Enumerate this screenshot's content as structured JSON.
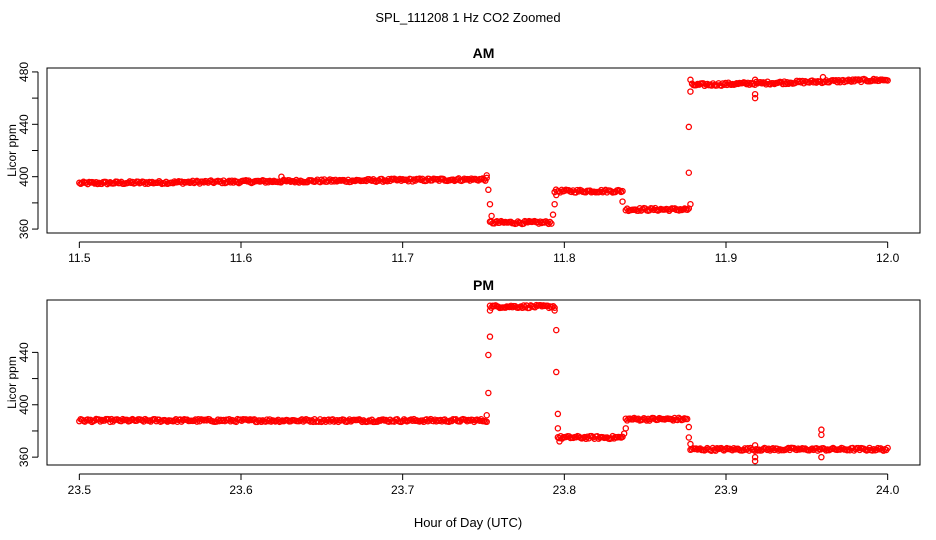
{
  "figure": {
    "suptitle": "SPL_111208  1 Hz CO2 Zoomed",
    "xlabel": "Hour of Day (UTC)"
  },
  "colors": {
    "points": "#ff0000",
    "axis": "#000000"
  },
  "chart_data": [
    {
      "type": "scatter",
      "title": "AM",
      "ylabel": "Licor ppm",
      "xlim": [
        11.48,
        12.02
      ],
      "ylim": [
        357,
        483
      ],
      "xticks": [
        11.5,
        11.6,
        11.7,
        11.8,
        11.9,
        12.0
      ],
      "xtick_labels": [
        "11.5",
        "11.6",
        "11.7",
        "11.8",
        "11.9",
        "12.0"
      ],
      "yticks": [
        360,
        380,
        400,
        420,
        440,
        460,
        480
      ],
      "ytick_labels": [
        "360",
        "",
        "400",
        "",
        "440",
        "",
        "480"
      ],
      "grid": false,
      "segments": [
        {
          "x": [
            11.5,
            11.752
          ],
          "y": [
            395,
            398
          ]
        },
        {
          "x": [
            11.754,
            11.792
          ],
          "y": [
            365,
            365
          ]
        },
        {
          "x": [
            11.794,
            11.836
          ],
          "y": [
            389,
            389
          ]
        },
        {
          "x": [
            11.838,
            11.877
          ],
          "y": [
            375,
            375
          ]
        },
        {
          "x": [
            11.879,
            12.0
          ],
          "y": [
            470,
            474
          ]
        }
      ],
      "outliers": [
        {
          "x": 11.752,
          "y": 401
        },
        {
          "x": 11.753,
          "y": 390
        },
        {
          "x": 11.754,
          "y": 379
        },
        {
          "x": 11.755,
          "y": 370
        },
        {
          "x": 11.793,
          "y": 371
        },
        {
          "x": 11.794,
          "y": 379
        },
        {
          "x": 11.795,
          "y": 386
        },
        {
          "x": 11.836,
          "y": 381
        },
        {
          "x": 11.878,
          "y": 379
        },
        {
          "x": 11.877,
          "y": 403
        },
        {
          "x": 11.877,
          "y": 438
        },
        {
          "x": 11.878,
          "y": 465
        },
        {
          "x": 11.878,
          "y": 474
        },
        {
          "x": 11.918,
          "y": 460
        },
        {
          "x": 11.918,
          "y": 463
        },
        {
          "x": 11.918,
          "y": 474
        },
        {
          "x": 11.96,
          "y": 476
        },
        {
          "x": 11.625,
          "y": 400
        }
      ]
    },
    {
      "type": "scatter",
      "title": "PM",
      "ylabel": "Licor ppm",
      "xlim": [
        23.48,
        24.02
      ],
      "ylim": [
        354,
        480
      ],
      "xticks": [
        23.5,
        23.6,
        23.7,
        23.8,
        23.9,
        24.0
      ],
      "xtick_labels": [
        "23.5",
        "23.6",
        "23.7",
        "23.8",
        "23.9",
        "24.0"
      ],
      "yticks": [
        360,
        380,
        400,
        420,
        440
      ],
      "ytick_labels": [
        "360",
        "",
        "400",
        "",
        "440"
      ],
      "grid": false,
      "segments": [
        {
          "x": [
            23.5,
            23.752
          ],
          "y": [
            388,
            388
          ]
        },
        {
          "x": [
            23.754,
            23.794
          ],
          "y": [
            475,
            475
          ]
        },
        {
          "x": [
            23.796,
            23.836
          ],
          "y": [
            375,
            375
          ]
        },
        {
          "x": [
            23.838,
            23.876
          ],
          "y": [
            389,
            389
          ]
        },
        {
          "x": [
            23.878,
            24.0
          ],
          "y": [
            366,
            366
          ]
        }
      ],
      "outliers": [
        {
          "x": 23.752,
          "y": 392
        },
        {
          "x": 23.753,
          "y": 409
        },
        {
          "x": 23.753,
          "y": 438
        },
        {
          "x": 23.754,
          "y": 452
        },
        {
          "x": 23.754,
          "y": 472
        },
        {
          "x": 23.794,
          "y": 472
        },
        {
          "x": 23.795,
          "y": 457
        },
        {
          "x": 23.795,
          "y": 425
        },
        {
          "x": 23.796,
          "y": 393
        },
        {
          "x": 23.796,
          "y": 382
        },
        {
          "x": 23.797,
          "y": 372
        },
        {
          "x": 23.837,
          "y": 378
        },
        {
          "x": 23.838,
          "y": 382
        },
        {
          "x": 23.877,
          "y": 383
        },
        {
          "x": 23.877,
          "y": 375
        },
        {
          "x": 23.878,
          "y": 370
        },
        {
          "x": 23.918,
          "y": 357
        },
        {
          "x": 23.918,
          "y": 360
        },
        {
          "x": 23.918,
          "y": 369
        },
        {
          "x": 23.959,
          "y": 381
        },
        {
          "x": 23.959,
          "y": 377
        },
        {
          "x": 23.959,
          "y": 360
        }
      ]
    }
  ]
}
